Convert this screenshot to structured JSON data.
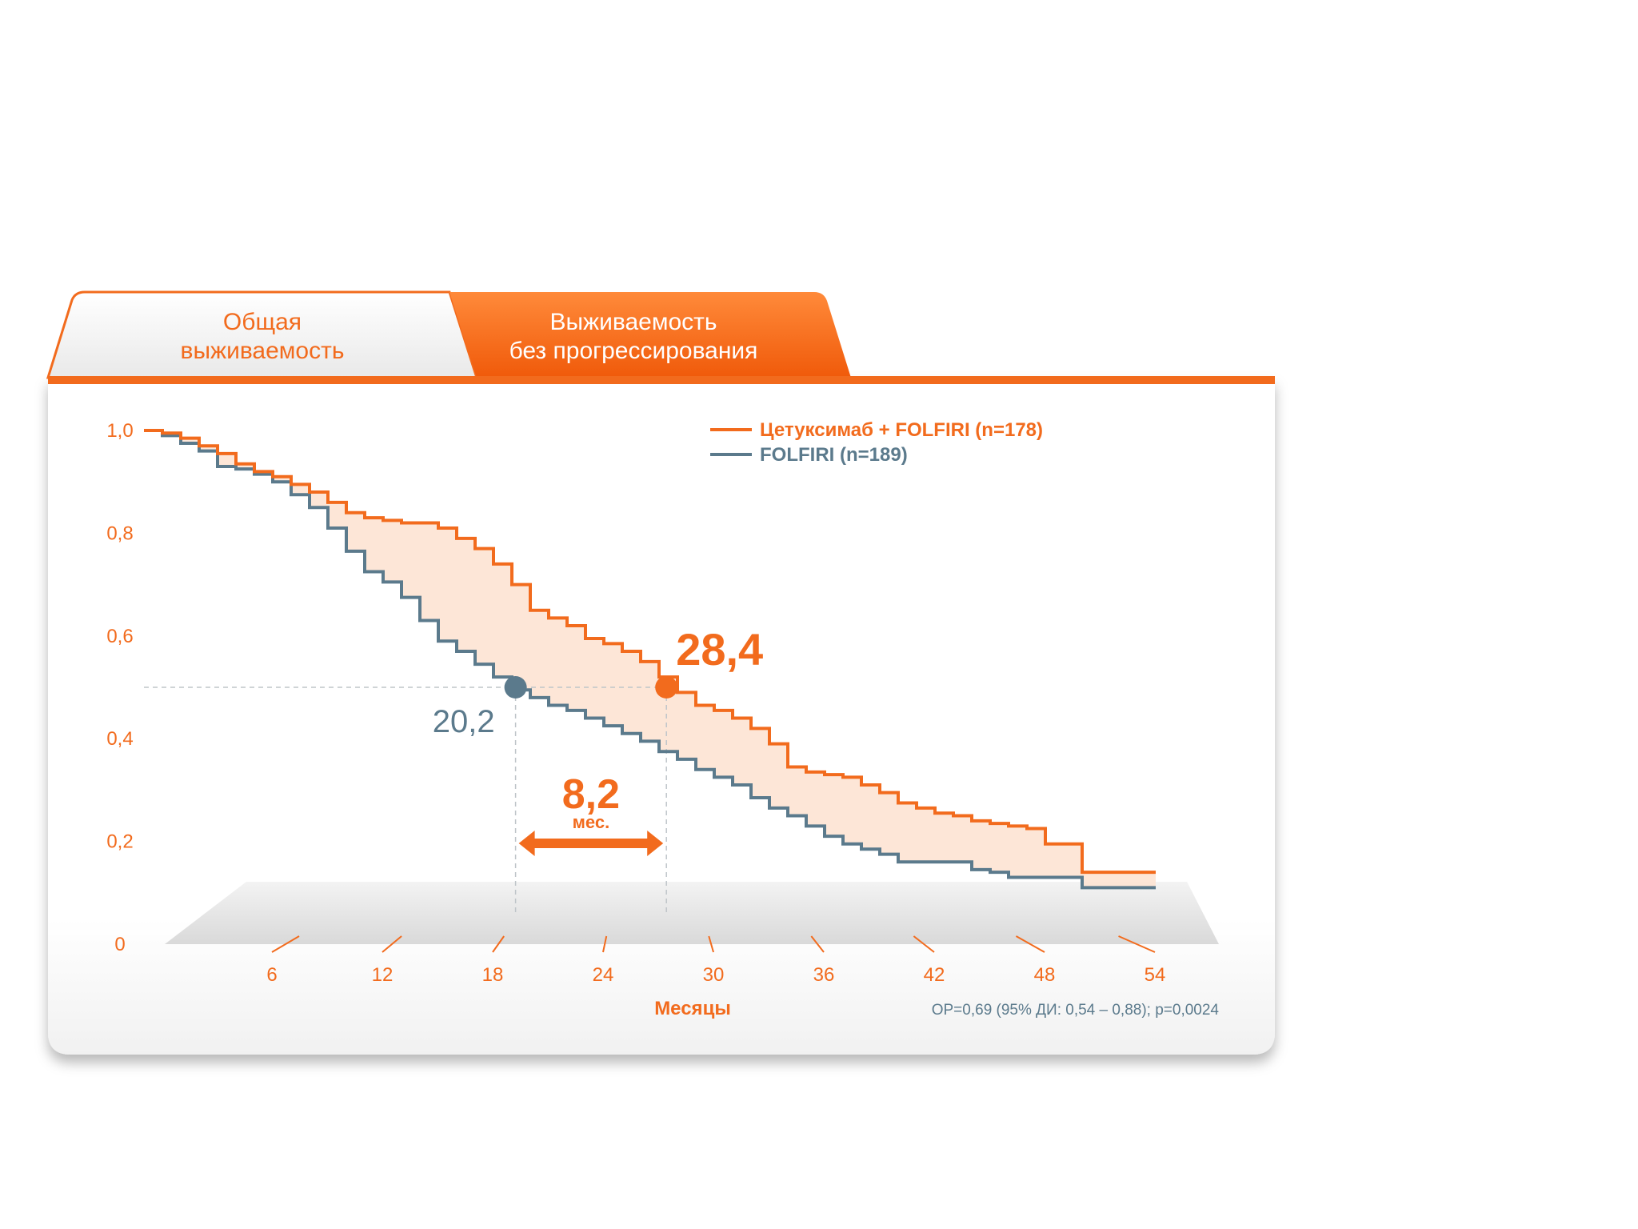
{
  "tabs": [
    {
      "label_line1": "Общая",
      "label_line2": "выживаемость",
      "active": false
    },
    {
      "label_line1": "Выживаемость",
      "label_line2": "без прогрессирования",
      "active": true
    }
  ],
  "colors": {
    "accent": "#f26b1d",
    "control": "#5b7a8c",
    "fill_between": "#fde3d3",
    "tab_inactive_text": "#f26b1d",
    "tab_active_text": "#ffffff"
  },
  "chart_data": {
    "type": "line",
    "subtype": "kaplan-meier",
    "xlabel": "Месяцы",
    "x_ticks": [
      6,
      12,
      18,
      24,
      30,
      36,
      42,
      48,
      54
    ],
    "y_ticks": [
      0,
      0.2,
      0.4,
      0.6,
      0.8,
      1.0
    ],
    "y_tick_labels": [
      "0",
      "0,2",
      "0,4",
      "0,6",
      "0,8",
      "1,0"
    ],
    "xlim": [
      0,
      55
    ],
    "ylim": [
      0,
      1.0
    ],
    "legend": {
      "placement": "top-right"
    },
    "series": [
      {
        "name": "Цетуксимаб + FOLFIRI (n=178)",
        "color": "#f26b1d",
        "x": [
          0,
          1,
          2,
          3,
          4,
          5,
          6,
          7,
          8,
          9,
          10,
          11,
          12,
          13,
          14,
          15,
          16,
          17,
          18,
          19,
          20,
          21,
          22,
          23,
          24,
          25,
          26,
          27,
          28,
          29,
          30,
          31,
          32,
          33,
          34,
          35,
          36,
          37,
          38,
          39,
          40,
          41,
          42,
          43,
          44,
          45,
          46,
          47,
          48,
          49,
          50,
          51,
          52,
          53,
          54,
          55
        ],
        "y": [
          1.0,
          0.995,
          0.985,
          0.97,
          0.955,
          0.935,
          0.92,
          0.91,
          0.895,
          0.88,
          0.86,
          0.84,
          0.83,
          0.825,
          0.82,
          0.82,
          0.81,
          0.79,
          0.77,
          0.74,
          0.7,
          0.65,
          0.635,
          0.62,
          0.595,
          0.585,
          0.57,
          0.55,
          0.52,
          0.49,
          0.465,
          0.455,
          0.44,
          0.42,
          0.39,
          0.345,
          0.335,
          0.33,
          0.325,
          0.31,
          0.295,
          0.275,
          0.265,
          0.255,
          0.25,
          0.24,
          0.235,
          0.23,
          0.225,
          0.195,
          0.195,
          0.14,
          0.14,
          0.14,
          0.14,
          0.14
        ]
      },
      {
        "name": "FOLFIRI (n=189)",
        "color": "#5b7a8c",
        "x": [
          0,
          1,
          2,
          3,
          4,
          5,
          6,
          7,
          8,
          9,
          10,
          11,
          12,
          13,
          14,
          15,
          16,
          17,
          18,
          19,
          20,
          21,
          22,
          23,
          24,
          25,
          26,
          27,
          28,
          29,
          30,
          31,
          32,
          33,
          34,
          35,
          36,
          37,
          38,
          39,
          40,
          41,
          42,
          43,
          44,
          45,
          46,
          47,
          48,
          49,
          50,
          51,
          52,
          53,
          54,
          55
        ],
        "y": [
          1.0,
          0.99,
          0.975,
          0.96,
          0.93,
          0.925,
          0.915,
          0.9,
          0.875,
          0.85,
          0.81,
          0.765,
          0.725,
          0.705,
          0.675,
          0.63,
          0.59,
          0.57,
          0.545,
          0.52,
          0.495,
          0.48,
          0.465,
          0.455,
          0.44,
          0.425,
          0.41,
          0.395,
          0.375,
          0.36,
          0.34,
          0.325,
          0.31,
          0.285,
          0.265,
          0.25,
          0.23,
          0.21,
          0.195,
          0.185,
          0.175,
          0.16,
          0.16,
          0.16,
          0.16,
          0.145,
          0.14,
          0.13,
          0.13,
          0.13,
          0.13,
          0.11,
          0.11,
          0.11,
          0.11,
          0.11
        ]
      }
    ],
    "annotations": {
      "median_level": 0.5,
      "median_control": {
        "x": 20.2,
        "label": "20,2"
      },
      "median_treatment": {
        "x": 28.4,
        "label": "28,4"
      },
      "difference": {
        "value": "8,2",
        "unit": "мес."
      },
      "stats": "ОР=0,69 (95% ДИ: 0,54 – 0,88); p=0,0024"
    }
  }
}
